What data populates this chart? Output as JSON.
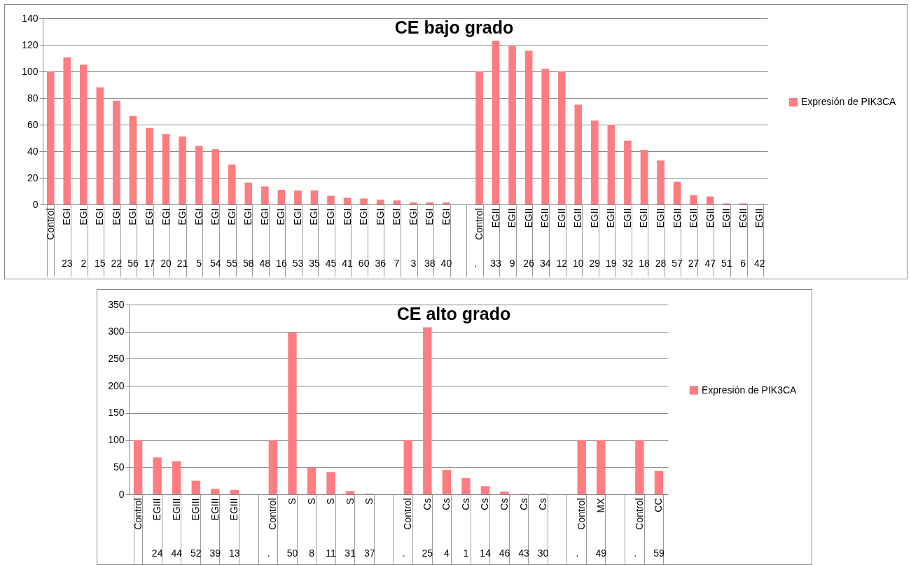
{
  "chart_data": [
    {
      "type": "bar",
      "title": "CE bajo grado",
      "categories": [
        "Control",
        "EGI 23",
        "EGI 2",
        "EGI 15",
        "EGI 22",
        "EGI 56",
        "EGI 17",
        "EGI 20",
        "EGI 21",
        "EGI 5",
        "EGI 54",
        "EGI 55",
        "EGI 58",
        "EGI 48",
        "EGI 16",
        "EGI 53",
        "EGI 35",
        "EGI 45",
        "EGI 41",
        "EGI 60",
        "EGI 36",
        "EGI 7",
        "EGI 3",
        "EGI 38",
        "EGI 40",
        null,
        "Control .",
        "EGII 33",
        "EGII 9",
        "EGII 26",
        "EGII 34",
        "EGII 12",
        "EGII 10",
        "EGII 29",
        "EGII 19",
        "EGII 32",
        "EGII 18",
        "EGII 28",
        "EGII 57",
        "EGII 27",
        "EGII 47",
        "EGII 51",
        "EGII 6",
        "EGII 42"
      ],
      "series": [
        {
          "name": "Expresión de PIK3CA",
          "color": "#ff7c80",
          "values": [
            100,
            110.5,
            105,
            88,
            78,
            66.5,
            57.5,
            53,
            51,
            44,
            41.5,
            30,
            16.5,
            13.5,
            11,
            10.5,
            10.5,
            6.5,
            5,
            4.5,
            3.5,
            3,
            1.5,
            1.5,
            1.5,
            null,
            100,
            123,
            119,
            115.5,
            102,
            100,
            75,
            63,
            60,
            48,
            41,
            33,
            17,
            7,
            6,
            0.8,
            0.8,
            0.3
          ]
        }
      ],
      "ylim": [
        0,
        140
      ],
      "yticks": [
        0,
        20,
        40,
        60,
        80,
        100,
        120,
        140
      ],
      "grid": "y",
      "legend": "right"
    },
    {
      "type": "bar",
      "title": "CE alto grado",
      "categories": [
        "Control",
        "EGIII 24",
        "EGIII 44",
        "EGIII 52",
        "EGIII 39",
        "EGIII 13",
        null,
        "Control .",
        "S 50",
        "S 8",
        "S 11",
        "S 31",
        "S 37",
        null,
        "Control .",
        "Cs 25",
        "Cs 4",
        "Cs 1",
        "Cs 14",
        "Cs 46",
        "Cs 43",
        "Cs 30",
        null,
        "Control .",
        "MX 49",
        null,
        "Control .",
        "CC 59"
      ],
      "series": [
        {
          "name": "Expresión de PIK3CA",
          "color": "#ff7c80",
          "values": [
            100,
            68,
            61,
            25,
            10,
            8,
            null,
            100,
            298,
            50,
            41,
            6,
            1,
            null,
            100,
            308,
            45,
            30,
            15,
            5,
            1,
            1,
            null,
            100,
            100,
            null,
            100,
            43
          ]
        }
      ],
      "ylim": [
        0,
        350
      ],
      "yticks": [
        0,
        50,
        100,
        150,
        200,
        250,
        300,
        350
      ],
      "grid": "y",
      "legend": "right"
    }
  ]
}
